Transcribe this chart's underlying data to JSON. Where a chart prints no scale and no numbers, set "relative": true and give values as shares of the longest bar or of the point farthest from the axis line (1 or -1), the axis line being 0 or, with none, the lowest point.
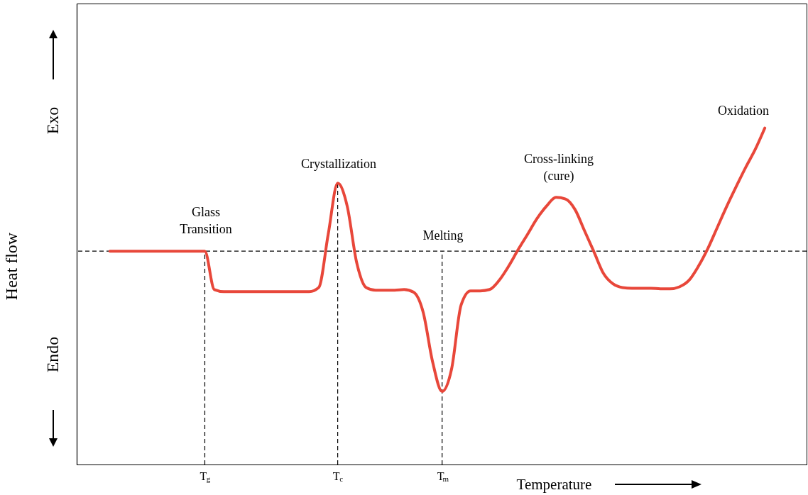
{
  "chart_data": {
    "type": "line",
    "relative": true,
    "xlabel": "Temperature",
    "ylabel": "Heat flow",
    "categories": [
      null,
      null,
      null,
      null,
      null,
      null,
      null,
      null,
      null,
      null,
      "T$_{g}$",
      null,
      null,
      null,
      null,
      null,
      null,
      null,
      null,
      null,
      null,
      null,
      null,
      null,
      "T$_{c}$",
      null,
      null,
      null,
      null,
      null,
      null,
      null,
      null,
      null,
      null,
      "T$_{m}$",
      null,
      null,
      null,
      null,
      null,
      null,
      null,
      null,
      null,
      null,
      null,
      null,
      null,
      null,
      null,
      null,
      null,
      null,
      null,
      null,
      null,
      null,
      null,
      null,
      null,
      null,
      null,
      null,
      null,
      null,
      null,
      null,
      null,
      null
    ],
    "series": [
      {
        "color": "#e8473a",
        "values": [
          0.634,
          0.634,
          0.634,
          0.634,
          0.634,
          0.634,
          0.634,
          0.634,
          0.634,
          0.634,
          0.634,
          0.52,
          0.514,
          0.514,
          0.514,
          0.514,
          0.514,
          0.514,
          0.514,
          0.514,
          0.514,
          0.514,
          0.526,
          0.684,
          0.836,
          0.768,
          0.6,
          0.526,
          0.518,
          0.518,
          0.518,
          0.52,
          0.512,
          0.453,
          0.305,
          0.217,
          0.284,
          0.474,
          0.516,
          0.516,
          0.52,
          0.547,
          0.589,
          0.638,
          0.684,
          0.731,
          0.768,
          0.794,
          0.789,
          0.758,
          0.695,
          0.632,
          0.568,
          0.537,
          0.526,
          0.524,
          0.524,
          0.524,
          0.522,
          0.522,
          0.528,
          0.547,
          0.589,
          0.642,
          0.705,
          0.768,
          0.827,
          0.884,
          0.937,
          1
        ]
      }
    ],
    "ref_lines": [
      {
        "axis": "y",
        "value": 0.634,
        "line_style": "dashed"
      },
      {
        "axis": "x",
        "value": "T$_{g}$",
        "line_style": "dashed"
      },
      {
        "axis": "x",
        "value": "T$_{c}$",
        "line_style": "dashed"
      },
      {
        "axis": "x",
        "value": "T$_{m}$",
        "line_style": "dashed"
      }
    ],
    "annotations": [
      "Glass Transition",
      "Crystallization",
      "Melting",
      "Cross-linking (cure)",
      "Oxidation",
      "Exo",
      "Endo"
    ],
    "grid": false,
    "marker": "none",
    "line_style": "solid"
  }
}
